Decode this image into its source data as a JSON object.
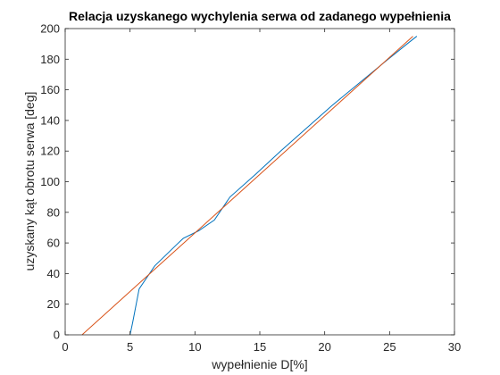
{
  "chart_data": {
    "type": "line",
    "title": "Relacja uzyskanego wychylenia serwa od zadanego wypełnienia",
    "xlabel": "wypełnienie D[%]",
    "ylabel": "uzyskany kąt obrotu serwa [deg]",
    "xlim": [
      0,
      30
    ],
    "ylim": [
      0,
      200
    ],
    "xticks": [
      0,
      5,
      10,
      15,
      20,
      25,
      30
    ],
    "yticks": [
      0,
      20,
      40,
      60,
      80,
      100,
      120,
      140,
      160,
      180,
      200
    ],
    "grid": false,
    "legend": "none",
    "series": [
      {
        "color": "#0072BD",
        "x": [
          5.0,
          5.2,
          5.7,
          6.9,
          8.6,
          9.1,
          10.3,
          11.5,
          12.7,
          14.7,
          16.6,
          18.6,
          20.6,
          22.6,
          24.6,
          26.5,
          27.1
        ],
        "y": [
          0,
          8,
          30,
          45,
          59,
          63,
          68,
          75,
          90,
          105,
          120,
          135,
          150,
          164,
          178,
          191,
          195
        ]
      },
      {
        "color": "#D95319",
        "x": [
          1.3,
          26.8
        ],
        "y": [
          0,
          195
        ]
      }
    ]
  }
}
